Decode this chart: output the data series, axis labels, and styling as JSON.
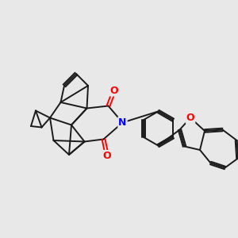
{
  "background_color": "#e8e8e8",
  "bond_color": "#1a1a1a",
  "N_color": "#0000ff",
  "O_color": "#ff0000",
  "bond_width": 1.4,
  "figsize": [
    3.0,
    3.0
  ],
  "dpi": 100,
  "xlim": [
    0,
    10
  ],
  "ylim": [
    0,
    10
  ]
}
